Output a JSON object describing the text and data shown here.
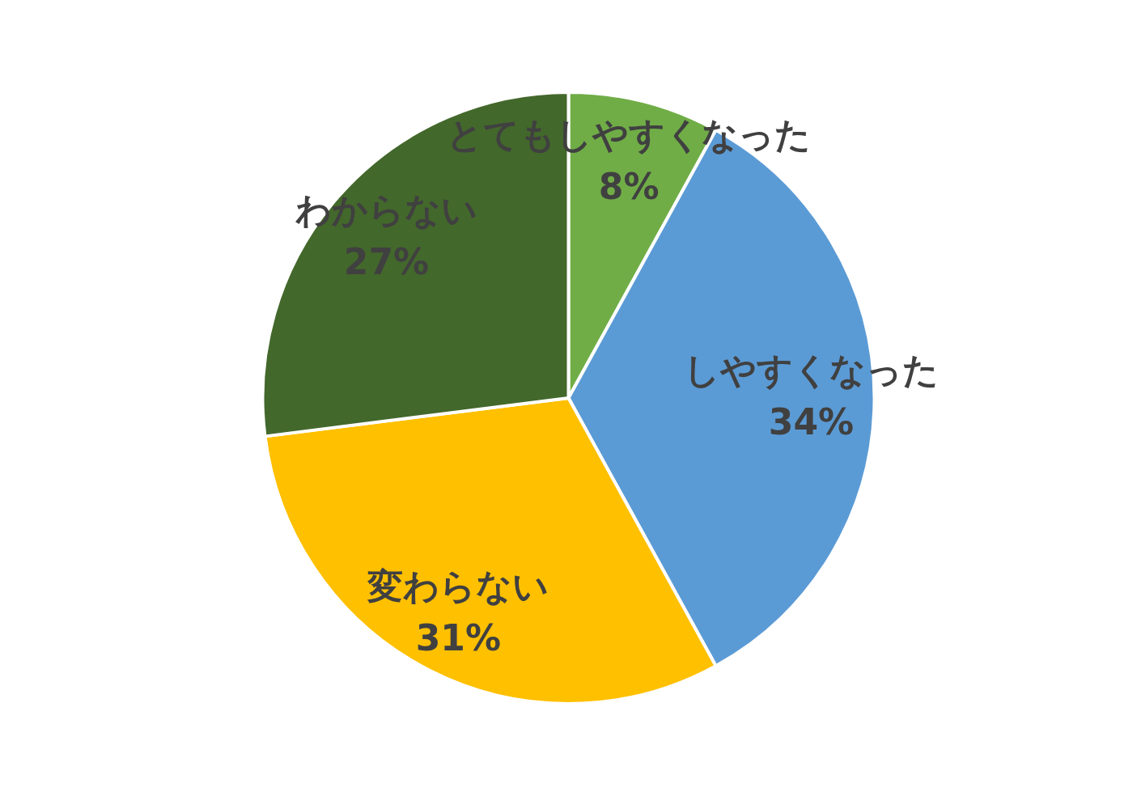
{
  "chart_data": {
    "type": "pie",
    "categories": [
      "とてもしやすくなった",
      "しやすくなった",
      "変わらない",
      "わからない"
    ],
    "values": [
      8,
      34,
      31,
      27
    ],
    "value_labels": [
      "8%",
      "34%",
      "31%",
      "27%"
    ],
    "colors": [
      "#70ad47",
      "#5b9bd5",
      "#ffc000",
      "#43682b"
    ]
  }
}
